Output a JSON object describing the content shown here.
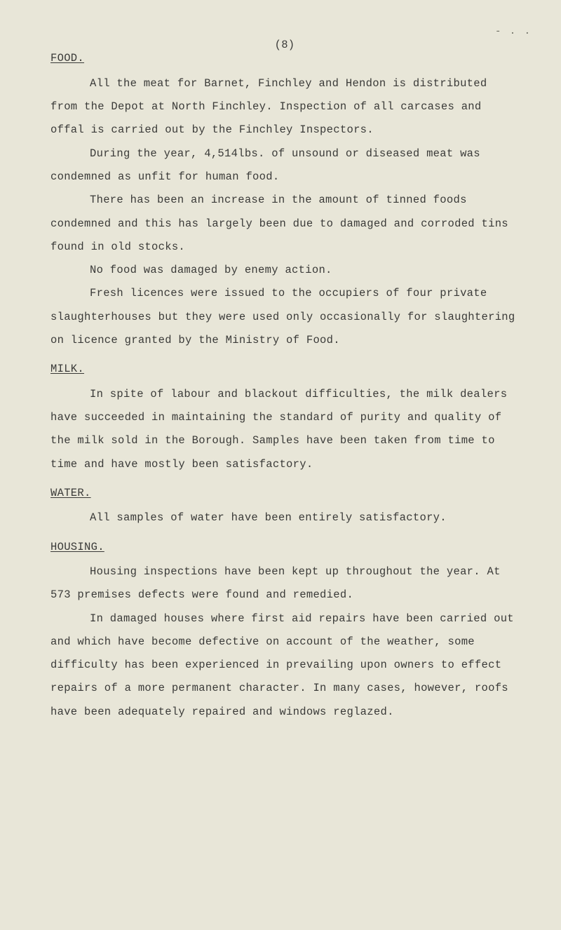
{
  "page_number": "(8)",
  "smudge": "- . .",
  "sections": {
    "food": {
      "heading": "FOOD.",
      "p1": "All the meat for Barnet, Finchley and Hendon is distributed from the Depot at North Finchley.   Inspection of all carcases and offal is carried out by the Finchley Inspectors.",
      "p2": "During the year, 4,514lbs. of unsound or diseased meat was condemned as unfit for human food.",
      "p3": "There has been an increase in the amount of tinned foods condemned and this has largely been due to damaged and corroded tins found in old stocks.",
      "p4": "No food was damaged by enemy action.",
      "p5": "Fresh licences were issued to the occupiers of four private slaughterhouses but they were used only occasionally for slaughtering on licence granted by the Ministry of Food."
    },
    "milk": {
      "heading": "MILK.",
      "p1": "In spite of labour and blackout difficulties, the milk dealers have succeeded in maintaining the standard of purity and quality of the milk sold in the Borough.   Samples have been taken from time to time and have mostly been satisfactory."
    },
    "water": {
      "heading": "WATER.",
      "p1": "All samples of water have been entirely satisfactory."
    },
    "housing": {
      "heading": "HOUSING.",
      "p1": "Housing inspections have been kept up throughout the year.   At 573 premises defects were found and remedied.",
      "p2": "In damaged houses where first aid repairs have been carried out and which have become defective on account of the weather, some difficulty has been experienced in prevailing upon owners to effect repairs of a more permanent character.   In many cases, however, roofs have been adequately repaired and windows reglazed."
    }
  }
}
